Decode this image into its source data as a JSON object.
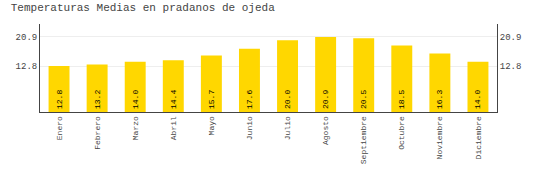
{
  "chart_data": {
    "type": "bar",
    "title": "Temperaturas Medias en pradanos de ojeda",
    "categories": [
      "Enero",
      "Febrero",
      "Marzo",
      "Abril",
      "Mayo",
      "Junio",
      "Julio",
      "Agosto",
      "Septiembre",
      "Octubre",
      "Noviembre",
      "Diciembre"
    ],
    "values": [
      12.8,
      13.2,
      14.0,
      14.4,
      15.7,
      17.6,
      20.0,
      20.9,
      20.5,
      18.5,
      16.3,
      14.0
    ],
    "value_labels": [
      "12.8",
      "13.2",
      "14.0",
      "14.4",
      "15.7",
      "17.6",
      "20.0",
      "20.9",
      "20.5",
      "18.5",
      "16.3",
      "14.0"
    ],
    "color": "#FFD700",
    "ylim": [
      0,
      24.5
    ],
    "yticks": [
      12.8,
      20.9
    ],
    "grid": true,
    "data_labels": true
  }
}
